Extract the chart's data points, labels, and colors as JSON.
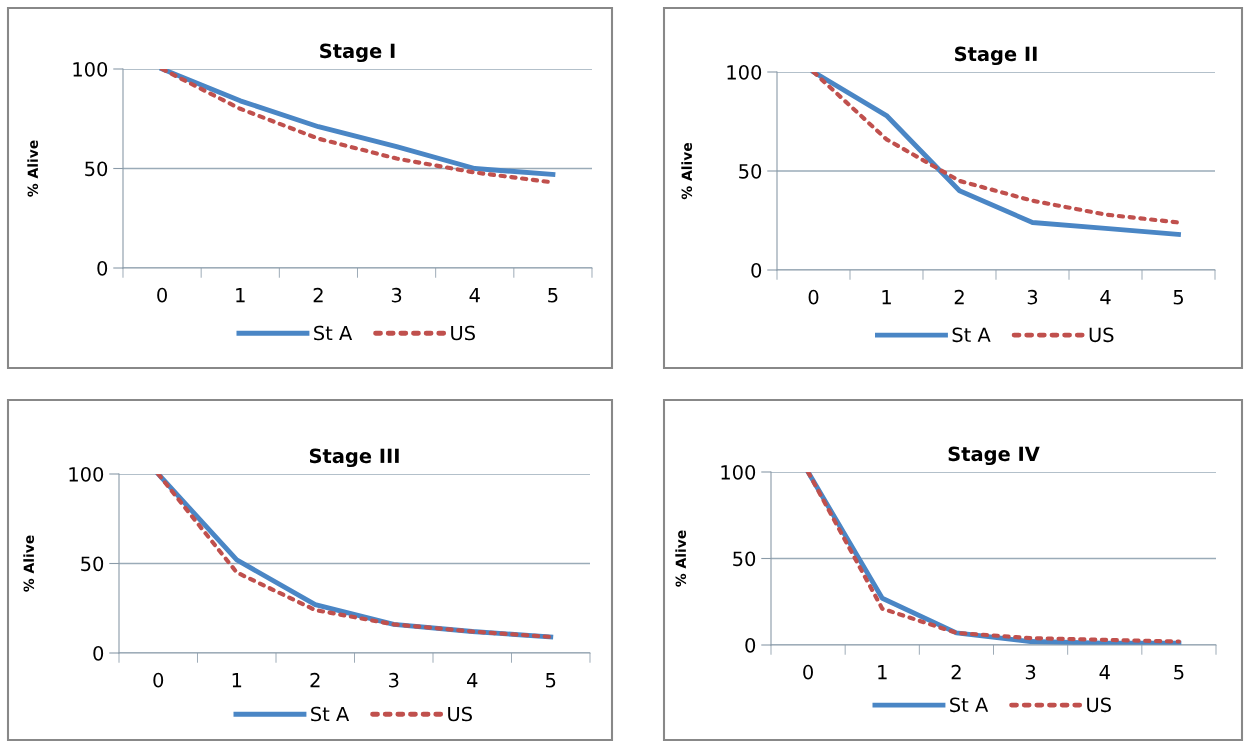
{
  "chart_data": [
    {
      "type": "line",
      "title": "Stage I",
      "ylabel": "% Alive",
      "categories": [
        "0",
        "1",
        "2",
        "3",
        "4",
        "5"
      ],
      "ylim": [
        0,
        100
      ],
      "yticks": [
        0,
        50,
        100
      ],
      "grid": "y",
      "legend": "bottom",
      "marker": "none",
      "series": [
        {
          "name": "St A",
          "color": "#4a86c5",
          "line_style": "solid",
          "values": [
            100,
            84,
            71,
            61,
            50,
            47
          ]
        },
        {
          "name": "US",
          "color": "#c0504d",
          "line_style": "dotted",
          "values": [
            100,
            80,
            65,
            55,
            48,
            43
          ]
        }
      ]
    },
    {
      "type": "line",
      "title": "Stage II",
      "ylabel": "% Alive",
      "categories": [
        "0",
        "1",
        "2",
        "3",
        "4",
        "5"
      ],
      "ylim": [
        0,
        100
      ],
      "yticks": [
        0,
        50,
        100
      ],
      "grid": "y",
      "legend": "bottom",
      "marker": "none",
      "series": [
        {
          "name": "St A",
          "color": "#4a86c5",
          "line_style": "solid",
          "values": [
            100,
            78,
            40,
            24,
            21,
            18
          ]
        },
        {
          "name": "US",
          "color": "#c0504d",
          "line_style": "dotted",
          "values": [
            100,
            66,
            45,
            35,
            28,
            24
          ]
        }
      ]
    },
    {
      "type": "line",
      "title": "Stage III",
      "ylabel": "% Alive",
      "categories": [
        "0",
        "1",
        "2",
        "3",
        "4",
        "5"
      ],
      "ylim": [
        0,
        100
      ],
      "yticks": [
        0,
        50,
        100
      ],
      "grid": "y",
      "legend": "bottom",
      "marker": "none",
      "series": [
        {
          "name": "St A",
          "color": "#4a86c5",
          "line_style": "solid",
          "values": [
            100,
            52,
            27,
            16,
            12,
            9
          ]
        },
        {
          "name": "US",
          "color": "#c0504d",
          "line_style": "dotted",
          "values": [
            100,
            45,
            24,
            16,
            12,
            9
          ]
        }
      ]
    },
    {
      "type": "line",
      "title": "Stage IV",
      "ylabel": "% Alive",
      "categories": [
        "0",
        "1",
        "2",
        "3",
        "4",
        "5"
      ],
      "ylim": [
        0,
        100
      ],
      "yticks": [
        0,
        50,
        100
      ],
      "grid": "y",
      "legend": "bottom",
      "marker": "none",
      "series": [
        {
          "name": "St A",
          "color": "#4a86c5",
          "line_style": "solid",
          "values": [
            100,
            27,
            7,
            2,
            1,
            1
          ]
        },
        {
          "name": "US",
          "color": "#c0504d",
          "line_style": "dotted",
          "values": [
            100,
            21,
            7,
            4,
            3,
            2
          ]
        }
      ]
    }
  ]
}
